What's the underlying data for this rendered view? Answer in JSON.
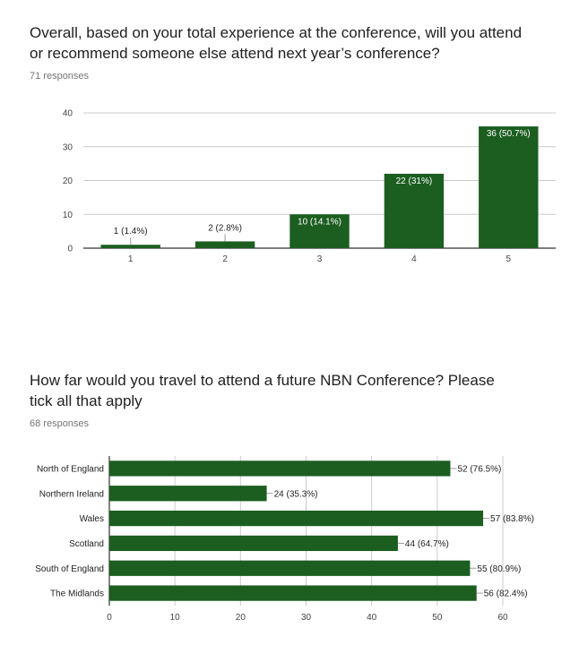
{
  "colors": {
    "bar": "#1b5e20",
    "axis": "#333333",
    "grid": "#cccccc",
    "leader": "#999999"
  },
  "q1": {
    "title_line1": "Overall, based on your total experience at the conference, will you attend",
    "title_line2": "or recommend someone else attend next year’s conference?",
    "responses": "71 responses"
  },
  "q2": {
    "title_line1": "How far would you travel to attend a future NBN Conference? Please",
    "title_line2": "tick all that apply",
    "responses": "68 responses"
  },
  "chart_data": [
    {
      "type": "bar",
      "orientation": "vertical",
      "categories": [
        "1",
        "2",
        "3",
        "4",
        "5"
      ],
      "values": [
        1,
        2,
        10,
        22,
        36
      ],
      "labels": [
        "1 (1.4%)",
        "2 (2.8%)",
        "10 (14.1%)",
        "22 (31%)",
        "36 (50.7%)"
      ],
      "ylim": [
        0,
        40
      ],
      "yticks": [
        0,
        10,
        20,
        30,
        40
      ],
      "grid": true
    },
    {
      "type": "bar",
      "orientation": "horizontal",
      "categories": [
        "North of England",
        "Northern Ireland",
        "Wales",
        "Scotland",
        "South of England",
        "The Midlands"
      ],
      "values": [
        52,
        24,
        57,
        44,
        55,
        56
      ],
      "labels": [
        "52 (76.5%)",
        "24 (35.3%)",
        "57 (83.8%)",
        "44 (64.7%)",
        "55 (80.9%)",
        "56 (82.4%)"
      ],
      "xlim": [
        0,
        60
      ],
      "xticks": [
        0,
        10,
        20,
        30,
        40,
        50,
        60
      ],
      "grid": true
    }
  ]
}
